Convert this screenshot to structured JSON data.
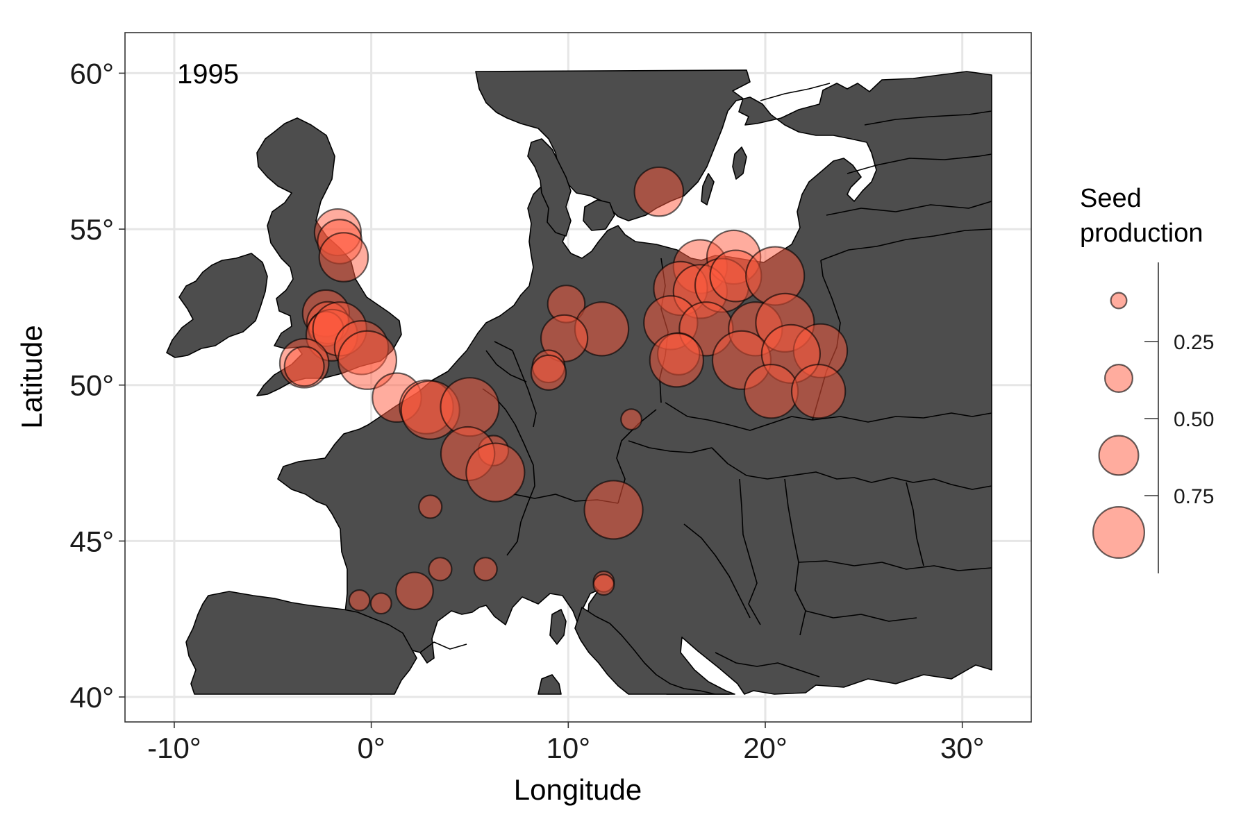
{
  "chart_data": {
    "type": "map-bubble",
    "panel_label": "1995",
    "xlabel": "Longitude",
    "ylabel": "Latitude",
    "xlim": [
      -12.5,
      33.5
    ],
    "ylim": [
      39.2,
      61.3
    ],
    "x_ticks": [
      {
        "value": -10,
        "label": "-10°"
      },
      {
        "value": 0,
        "label": "0°"
      },
      {
        "value": 10,
        "label": "10°"
      },
      {
        "value": 20,
        "label": "20°"
      },
      {
        "value": 30,
        "label": "30°"
      }
    ],
    "y_ticks": [
      {
        "value": 40,
        "label": "40°"
      },
      {
        "value": 45,
        "label": "45°"
      },
      {
        "value": 50,
        "label": "50°"
      },
      {
        "value": 55,
        "label": "55°"
      },
      {
        "value": 60,
        "label": "60°"
      }
    ],
    "grid": true,
    "point_color": "#ff5a3d",
    "land_color": "#4d4d4d",
    "legend": {
      "title_lines": [
        "Seed",
        "production"
      ],
      "position": "right",
      "breaks": [
        {
          "value": 0.1,
          "label": ""
        },
        {
          "value": 0.35,
          "label": "0.25"
        },
        {
          "value": 0.6,
          "label": "0.50"
        },
        {
          "value": 0.85,
          "label": "0.75"
        }
      ],
      "tick_labels": [
        "0.25",
        "0.50",
        "0.75"
      ]
    },
    "points": [
      {
        "lon": 14.6,
        "lat": 56.2,
        "value": 0.8
      },
      {
        "lon": -1.7,
        "lat": 54.9,
        "value": 0.75
      },
      {
        "lon": -1.6,
        "lat": 54.6,
        "value": 0.7
      },
      {
        "lon": -1.4,
        "lat": 54.1,
        "value": 0.8
      },
      {
        "lon": -2.3,
        "lat": 52.3,
        "value": 0.75
      },
      {
        "lon": -2.2,
        "lat": 52.0,
        "value": 0.65
      },
      {
        "lon": -2.3,
        "lat": 51.8,
        "value": 0.5
      },
      {
        "lon": -2.0,
        "lat": 51.6,
        "value": 0.85
      },
      {
        "lon": -1.6,
        "lat": 51.8,
        "value": 0.9
      },
      {
        "lon": -0.5,
        "lat": 51.2,
        "value": 0.9
      },
      {
        "lon": -0.2,
        "lat": 50.8,
        "value": 1.0
      },
      {
        "lon": -3.4,
        "lat": 50.7,
        "value": 0.8
      },
      {
        "lon": -3.4,
        "lat": 50.6,
        "value": 0.6
      },
      {
        "lon": 1.3,
        "lat": 49.6,
        "value": 0.8
      },
      {
        "lon": 2.8,
        "lat": 49.3,
        "value": 0.9
      },
      {
        "lon": 3.0,
        "lat": 49.2,
        "value": 1.0
      },
      {
        "lon": 5.0,
        "lat": 49.3,
        "value": 1.0
      },
      {
        "lon": 6.2,
        "lat": 47.9,
        "value": 0.4
      },
      {
        "lon": 4.9,
        "lat": 47.8,
        "value": 0.9
      },
      {
        "lon": 6.3,
        "lat": 47.2,
        "value": 1.0
      },
      {
        "lon": 3.0,
        "lat": 46.1,
        "value": 0.25
      },
      {
        "lon": 12.3,
        "lat": 46.0,
        "value": 1.0
      },
      {
        "lon": 3.5,
        "lat": 44.1,
        "value": 0.25
      },
      {
        "lon": 5.8,
        "lat": 44.1,
        "value": 0.25
      },
      {
        "lon": 2.2,
        "lat": 43.4,
        "value": 0.55
      },
      {
        "lon": -0.6,
        "lat": 43.1,
        "value": 0.2
      },
      {
        "lon": 0.5,
        "lat": 43.0,
        "value": 0.2
      },
      {
        "lon": 11.8,
        "lat": 43.7,
        "value": 0.2
      },
      {
        "lon": 11.8,
        "lat": 43.6,
        "value": 0.2
      },
      {
        "lon": 9.9,
        "lat": 52.6,
        "value": 0.55
      },
      {
        "lon": 11.7,
        "lat": 51.8,
        "value": 0.9
      },
      {
        "lon": 9.8,
        "lat": 51.5,
        "value": 0.75
      },
      {
        "lon": 9.0,
        "lat": 50.6,
        "value": 0.45
      },
      {
        "lon": 9.0,
        "lat": 50.4,
        "value": 0.5
      },
      {
        "lon": 13.2,
        "lat": 48.9,
        "value": 0.2
      },
      {
        "lon": 16.7,
        "lat": 53.8,
        "value": 0.9
      },
      {
        "lon": 18.4,
        "lat": 54.1,
        "value": 0.9
      },
      {
        "lon": 15.7,
        "lat": 53.1,
        "value": 0.9
      },
      {
        "lon": 16.7,
        "lat": 53.0,
        "value": 0.9
      },
      {
        "lon": 17.8,
        "lat": 53.2,
        "value": 0.9
      },
      {
        "lon": 18.5,
        "lat": 53.5,
        "value": 0.85
      },
      {
        "lon": 20.5,
        "lat": 53.5,
        "value": 1.0
      },
      {
        "lon": 15.2,
        "lat": 52.0,
        "value": 0.9
      },
      {
        "lon": 17.0,
        "lat": 51.8,
        "value": 0.9
      },
      {
        "lon": 19.5,
        "lat": 51.8,
        "value": 0.9
      },
      {
        "lon": 21.0,
        "lat": 52.0,
        "value": 1.0
      },
      {
        "lon": 15.6,
        "lat": 51.0,
        "value": 0.65
      },
      {
        "lon": 15.5,
        "lat": 50.8,
        "value": 0.9
      },
      {
        "lon": 18.8,
        "lat": 50.8,
        "value": 1.0
      },
      {
        "lon": 22.8,
        "lat": 51.1,
        "value": 0.9
      },
      {
        "lon": 21.3,
        "lat": 51.0,
        "value": 1.0
      },
      {
        "lon": 20.3,
        "lat": 49.8,
        "value": 0.9
      },
      {
        "lon": 22.7,
        "lat": 49.8,
        "value": 0.9
      }
    ]
  }
}
